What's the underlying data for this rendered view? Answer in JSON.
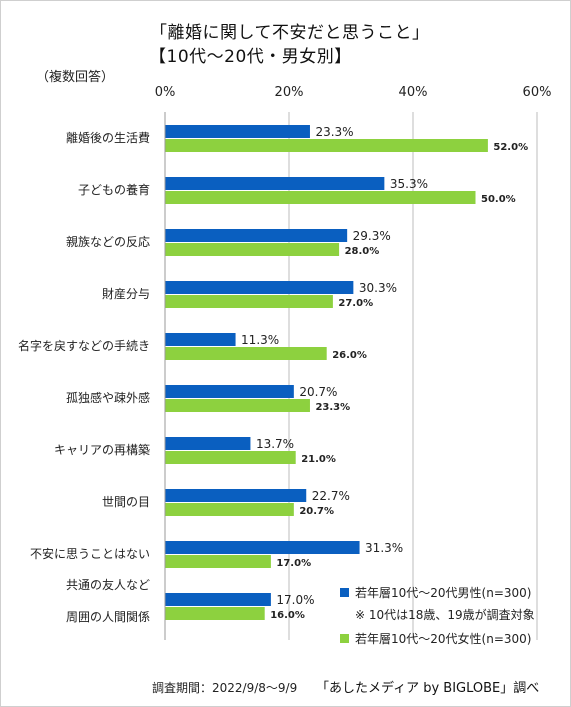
{
  "title_line1": "「離婚に関して不安だと思うこと」",
  "title_line2": "【10代～20代・男女別】",
  "note": "（複数回答）",
  "colors": {
    "male": "#0a5fc0",
    "female": "#8dd13f",
    "grid": "#bdbdbd"
  },
  "legend": {
    "male": "若年層10代～20代男性(n=300)",
    "footnote": "※ 10代は18歳、19歳が調査対象",
    "female": "若年層10代～20代女性(n=300)"
  },
  "footer": {
    "period": "調査期間：2022/9/8～9/9",
    "source": "「あしたメディア by BIGLOBE」調べ"
  },
  "chart_data": {
    "type": "bar",
    "orientation": "horizontal",
    "xlim": [
      0,
      60
    ],
    "ticks": [
      "0%",
      "20%",
      "40%",
      "60%"
    ],
    "tick_values": [
      0,
      20,
      40,
      60
    ],
    "categories": [
      [
        "離婚後の生活費"
      ],
      [
        "子どもの養育"
      ],
      [
        "親族などの反応"
      ],
      [
        "財産分与"
      ],
      [
        "名字を戻すなどの手続き"
      ],
      [
        "孤独感や疎外感"
      ],
      [
        "キャリアの再構築"
      ],
      [
        "世間の目"
      ],
      [
        "不安に思うことはない"
      ],
      [
        "共通の友人など",
        "周囲の人間関係"
      ]
    ],
    "series": [
      {
        "name": "若年層10代～20代男性(n=300)",
        "values": [
          23.3,
          35.3,
          29.3,
          30.3,
          11.3,
          20.7,
          13.7,
          22.7,
          31.3,
          17.0
        ],
        "labels": [
          "23.3%",
          "35.3%",
          "29.3%",
          "30.3%",
          "11.3%",
          "20.7%",
          "13.7%",
          "22.7%",
          "31.3%",
          "17.0%"
        ]
      },
      {
        "name": "若年層10代～20代女性(n=300)",
        "values": [
          52.0,
          50.0,
          28.0,
          27.0,
          26.0,
          23.3,
          21.0,
          20.7,
          17.0,
          16.0
        ],
        "labels": [
          "52.0%",
          "50.0%",
          "28.0%",
          "27.0%",
          "26.0%",
          "23.3%",
          "21.0%",
          "20.7%",
          "17.0%",
          "16.0%"
        ]
      }
    ],
    "grid": true,
    "legend_position": "bottom-right"
  }
}
